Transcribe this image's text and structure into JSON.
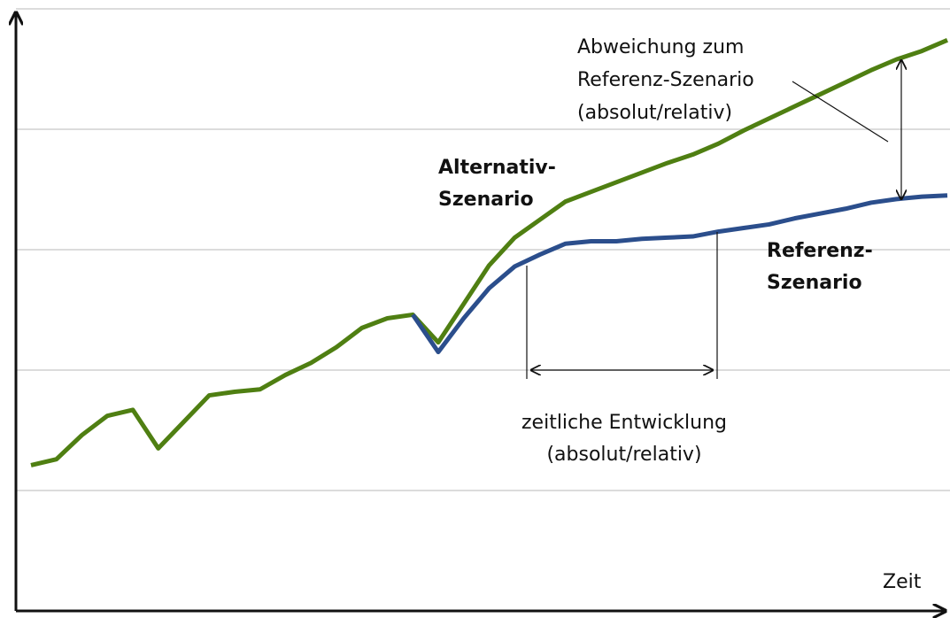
{
  "chart_data": {
    "type": "line",
    "x_label": "Zeit",
    "x": [
      0,
      1,
      2,
      3,
      4,
      5,
      6,
      7,
      8,
      9,
      10,
      11,
      12,
      13,
      14,
      15,
      16,
      17,
      18,
      19,
      20,
      21,
      22,
      23,
      24,
      25,
      26,
      27,
      28,
      29,
      30,
      31,
      32,
      33,
      34,
      35,
      36
    ],
    "xlim": [
      0,
      36
    ],
    "ylim": [
      0,
      5
    ],
    "yticks": [
      1,
      2,
      3,
      4,
      5
    ],
    "grid": true,
    "series": [
      {
        "name": "Alternativ-Szenario",
        "color": "#4f7f12",
        "values": [
          1.21,
          1.26,
          1.46,
          1.62,
          1.67,
          1.35,
          1.57,
          1.79,
          1.82,
          1.84,
          1.96,
          2.06,
          2.19,
          2.35,
          2.43,
          2.46,
          2.23,
          2.55,
          2.87,
          3.1,
          3.25,
          3.4,
          3.48,
          3.56,
          3.64,
          3.72,
          3.79,
          3.88,
          3.99,
          4.09,
          4.19,
          4.29,
          4.39,
          4.49,
          4.58,
          4.65,
          4.74
        ]
      },
      {
        "name": "Referenz-Szenario",
        "color": "#2b4e8c",
        "values": [
          null,
          null,
          null,
          null,
          null,
          null,
          null,
          null,
          null,
          null,
          null,
          null,
          null,
          null,
          null,
          2.46,
          2.15,
          2.43,
          2.68,
          2.86,
          2.96,
          3.05,
          3.07,
          3.07,
          3.09,
          3.1,
          3.11,
          3.15,
          3.18,
          3.21,
          3.26,
          3.3,
          3.34,
          3.39,
          3.42,
          3.44,
          3.45
        ]
      }
    ],
    "annotations": [
      {
        "lines": [
          "Abweichung zum",
          "Referenz-Szenario",
          "(absolut/relativ)"
        ]
      },
      {
        "lines": [
          "zeitliche Entwicklung",
          "(absolut/relativ)"
        ]
      }
    ]
  }
}
